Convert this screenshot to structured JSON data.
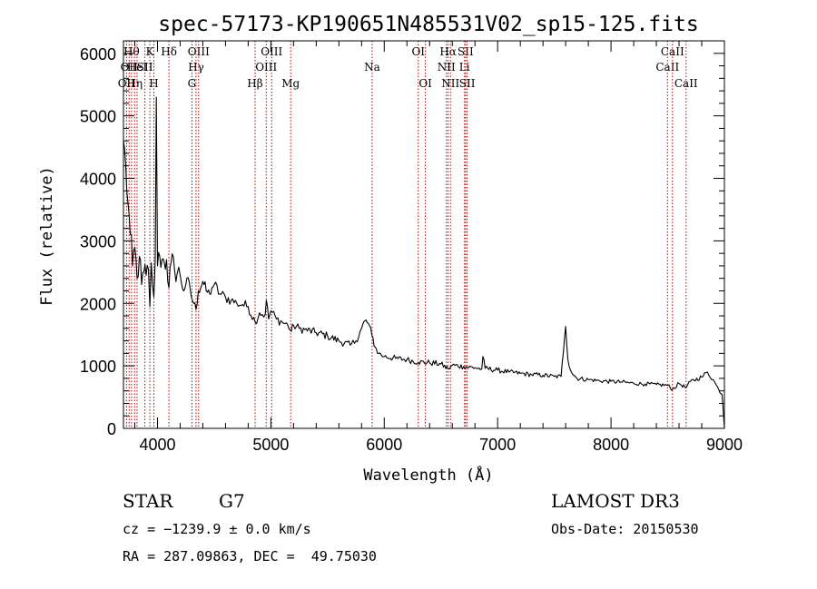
{
  "chart_data": {
    "type": "line",
    "title": "spec-57173-KP190651N485531V02_sp15-125.fits",
    "xlabel": "Wavelength (Å)",
    "ylabel": "Flux (relative)",
    "xlim": [
      3700,
      9000
    ],
    "ylim": [
      0,
      6200
    ],
    "x_ticks": [
      {
        "value": 4000,
        "label": "4000"
      },
      {
        "value": 5000,
        "label": "5000"
      },
      {
        "value": 6000,
        "label": "6000"
      },
      {
        "value": 7000,
        "label": "7000"
      },
      {
        "value": 8000,
        "label": "8000"
      },
      {
        "value": 9000,
        "label": "9000"
      }
    ],
    "y_ticks": [
      {
        "value": 0,
        "label": "0"
      },
      {
        "value": 1000,
        "label": "1000"
      },
      {
        "value": 2000,
        "label": "2000"
      },
      {
        "value": 3000,
        "label": "3000"
      },
      {
        "value": 4000,
        "label": "4000"
      },
      {
        "value": 5000,
        "label": "5000"
      },
      {
        "value": 6000,
        "label": "6000"
      }
    ],
    "series": [
      {
        "name": "spectrum",
        "points": [
          [
            3700,
            4600
          ],
          [
            3720,
            4200
          ],
          [
            3740,
            3600
          ],
          [
            3760,
            3100
          ],
          [
            3780,
            2600
          ],
          [
            3800,
            2900
          ],
          [
            3820,
            2400
          ],
          [
            3840,
            2750
          ],
          [
            3860,
            2300
          ],
          [
            3880,
            2500
          ],
          [
            3900,
            2450
          ],
          [
            3920,
            2550
          ],
          [
            3933,
            1950
          ],
          [
            3945,
            2650
          ],
          [
            3968,
            2100
          ],
          [
            3980,
            2700
          ],
          [
            3990,
            5300
          ],
          [
            4000,
            2600
          ],
          [
            4020,
            2750
          ],
          [
            4040,
            2700
          ],
          [
            4060,
            2650
          ],
          [
            4080,
            2700
          ],
          [
            4101,
            2250
          ],
          [
            4120,
            2650
          ],
          [
            4150,
            2550
          ],
          [
            4200,
            2450
          ],
          [
            4230,
            2200
          ],
          [
            4250,
            2300
          ],
          [
            4280,
            2350
          ],
          [
            4300,
            2100
          ],
          [
            4320,
            2000
          ],
          [
            4340,
            1900
          ],
          [
            4360,
            2200
          ],
          [
            4400,
            2350
          ],
          [
            4430,
            2200
          ],
          [
            4460,
            2150
          ],
          [
            4480,
            2250
          ],
          [
            4500,
            2300
          ],
          [
            4550,
            2150
          ],
          [
            4600,
            2100
          ],
          [
            4650,
            2050
          ],
          [
            4700,
            2000
          ],
          [
            4750,
            1980
          ],
          [
            4800,
            1950
          ],
          [
            4861,
            1700
          ],
          [
            4900,
            1850
          ],
          [
            4950,
            1820
          ],
          [
            4960,
            2050
          ],
          [
            4980,
            1750
          ],
          [
            5000,
            1880
          ],
          [
            5050,
            1750
          ],
          [
            5100,
            1700
          ],
          [
            5150,
            1650
          ],
          [
            5180,
            1550
          ],
          [
            5200,
            1650
          ],
          [
            5250,
            1600
          ],
          [
            5300,
            1580
          ],
          [
            5400,
            1530
          ],
          [
            5500,
            1480
          ],
          [
            5600,
            1400
          ],
          [
            5700,
            1330
          ],
          [
            5750,
            1400
          ],
          [
            5800,
            1600
          ],
          [
            5830,
            1720
          ],
          [
            5860,
            1680
          ],
          [
            5890,
            1500
          ],
          [
            5920,
            1300
          ],
          [
            5950,
            1200
          ],
          [
            6000,
            1150
          ],
          [
            6100,
            1120
          ],
          [
            6200,
            1100
          ],
          [
            6300,
            1060
          ],
          [
            6400,
            1050
          ],
          [
            6500,
            1030
          ],
          [
            6563,
            950
          ],
          [
            6600,
            1010
          ],
          [
            6700,
            990
          ],
          [
            6800,
            970
          ],
          [
            6860,
            950
          ],
          [
            6870,
            1150
          ],
          [
            6890,
            960
          ],
          [
            7000,
            930
          ],
          [
            7100,
            900
          ],
          [
            7200,
            880
          ],
          [
            7300,
            860
          ],
          [
            7400,
            850
          ],
          [
            7500,
            830
          ],
          [
            7560,
            830
          ],
          [
            7590,
            1450
          ],
          [
            7600,
            1630
          ],
          [
            7620,
            1100
          ],
          [
            7650,
            900
          ],
          [
            7700,
            800
          ],
          [
            7800,
            780
          ],
          [
            7900,
            760
          ],
          [
            8000,
            750
          ],
          [
            8100,
            740
          ],
          [
            8200,
            720
          ],
          [
            8300,
            710
          ],
          [
            8400,
            700
          ],
          [
            8500,
            690
          ],
          [
            8542,
            620
          ],
          [
            8600,
            720
          ],
          [
            8662,
            650
          ],
          [
            8700,
            750
          ],
          [
            8800,
            820
          ],
          [
            8850,
            900
          ],
          [
            8900,
            780
          ],
          [
            8950,
            620
          ],
          [
            8980,
            540
          ],
          [
            9000,
            0
          ]
        ]
      }
    ],
    "line_markers": [
      {
        "wavelength": 3727,
        "label": "OII",
        "row": 2
      },
      {
        "wavelength": 3750,
        "label": "OII",
        "row": 1
      },
      {
        "wavelength": 3771,
        "label": "Hθ",
        "row": 0
      },
      {
        "wavelength": 3798,
        "label": "Hη",
        "row": 2
      },
      {
        "wavelength": 3820,
        "label": "HeI",
        "row": 1
      },
      {
        "wavelength": 3889,
        "label": "SII",
        "row": 1
      },
      {
        "wavelength": 3933,
        "label": "K",
        "row": 0
      },
      {
        "wavelength": 3968,
        "label": "H",
        "row": 2
      },
      {
        "wavelength": 4101,
        "label": "Hδ",
        "row": 0
      },
      {
        "wavelength": 4304,
        "label": "G",
        "row": 2
      },
      {
        "wavelength": 4340,
        "label": "Hγ",
        "row": 1
      },
      {
        "wavelength": 4363,
        "label": "OIII",
        "row": 0
      },
      {
        "wavelength": 4861,
        "label": "Hβ",
        "row": 2
      },
      {
        "wavelength": 4959,
        "label": "OIII",
        "row": 1
      },
      {
        "wavelength": 5007,
        "label": "OIII",
        "row": 0
      },
      {
        "wavelength": 5175,
        "label": "Mg",
        "row": 2
      },
      {
        "wavelength": 5893,
        "label": "Na",
        "row": 1
      },
      {
        "wavelength": 6300,
        "label": "OI",
        "row": 0
      },
      {
        "wavelength": 6363,
        "label": "OI",
        "row": 2
      },
      {
        "wavelength": 6548,
        "label": "NII",
        "row": 1
      },
      {
        "wavelength": 6563,
        "label": "Hα",
        "row": 0
      },
      {
        "wavelength": 6584,
        "label": "NII",
        "row": 2
      },
      {
        "wavelength": 6708,
        "label": "Li",
        "row": 1
      },
      {
        "wavelength": 6717,
        "label": "SII",
        "row": 0
      },
      {
        "wavelength": 6731,
        "label": "SII",
        "row": 2
      },
      {
        "wavelength": 8498,
        "label": "CaII",
        "row": 1
      },
      {
        "wavelength": 8542,
        "label": "CaII",
        "row": 0
      },
      {
        "wavelength": 8662,
        "label": "CaII",
        "row": 2
      }
    ]
  },
  "info": {
    "object_class": "STAR",
    "subclass": "G7",
    "survey": "LAMOST DR3",
    "redshift_line": "cz = −1239.9 ± 0.0 km/s",
    "obs_date_line": "Obs-Date: 20150530",
    "coords_line": "RA = 287.09863, DEC =  49.75030"
  },
  "colors": {
    "spectrum": "#000000",
    "marker_line": "#c00000",
    "axis": "#000000"
  }
}
